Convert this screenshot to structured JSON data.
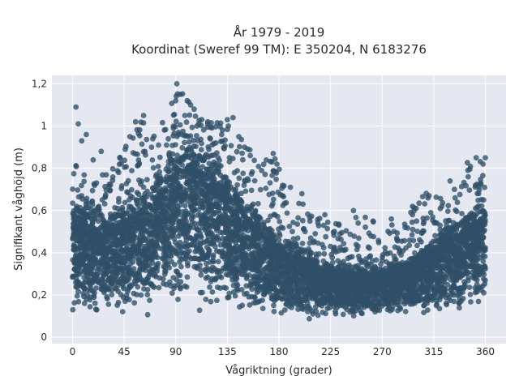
{
  "chart_data": {
    "type": "scatter",
    "title": "År 1979 - 2019",
    "subtitle": "Koordinat (Sweref 99 TM): E 350204, N 6183276",
    "xlabel": "Vågriktning (grader)",
    "ylabel": "Signifikant våghöjd (m)",
    "xlim": [
      -18,
      378
    ],
    "ylim": [
      -0.03,
      1.24
    ],
    "xticks": [
      0,
      45,
      90,
      135,
      180,
      225,
      270,
      315,
      360
    ],
    "xtick_labels": [
      "0",
      "45",
      "90",
      "135",
      "180",
      "225",
      "270",
      "315",
      "360"
    ],
    "yticks": [
      0,
      0.2,
      0.4,
      0.6,
      0.8,
      1.0,
      1.2
    ],
    "ytick_labels": [
      "0",
      "0,2",
      "0,4",
      "0,6",
      "0,8",
      "1",
      "1,2"
    ],
    "grid": true,
    "legend": "none",
    "colors": {
      "plot_bg": "#e5e8f0",
      "marker": "#2f5068",
      "grid": "#ffffff"
    },
    "series": [
      {
        "envelope": {
          "x": [
            0,
            15,
            30,
            45,
            60,
            75,
            90,
            105,
            120,
            135,
            150,
            165,
            180,
            195,
            210,
            225,
            240,
            255,
            270,
            285,
            300,
            315,
            330,
            345,
            360
          ],
          "y_min": [
            0.05,
            0.03,
            0.03,
            0.03,
            0.04,
            0.04,
            0.03,
            0.04,
            0.04,
            0.04,
            0.04,
            0.05,
            0.05,
            0.06,
            0.06,
            0.07,
            0.07,
            0.07,
            0.07,
            0.07,
            0.07,
            0.07,
            0.06,
            0.06,
            0.05
          ],
          "y_dense": [
            0.62,
            0.56,
            0.55,
            0.58,
            0.62,
            0.72,
            0.82,
            0.86,
            0.82,
            0.72,
            0.62,
            0.52,
            0.46,
            0.4,
            0.36,
            0.33,
            0.31,
            0.31,
            0.32,
            0.34,
            0.38,
            0.44,
            0.5,
            0.56,
            0.6
          ],
          "y_outlier_max": [
            0.87,
            0.74,
            0.8,
            0.9,
            1.05,
            0.97,
            1.2,
            1.1,
            1.02,
            1.03,
            0.93,
            0.84,
            0.87,
            0.68,
            0.6,
            0.57,
            0.55,
            0.6,
            0.55,
            0.54,
            0.65,
            0.71,
            0.76,
            0.85,
            0.85
          ]
        },
        "outliers": [
          [
            3,
            1.09
          ],
          [
            5,
            1.01
          ],
          [
            8,
            0.93
          ],
          [
            12,
            0.96
          ],
          [
            18,
            0.84
          ],
          [
            25,
            0.88
          ],
          [
            46,
            0.89
          ],
          [
            50,
            0.95
          ],
          [
            55,
            1.02
          ],
          [
            62,
            1.05
          ],
          [
            70,
            0.94
          ],
          [
            75,
            0.91
          ],
          [
            82,
            0.91
          ],
          [
            88,
            1.0
          ],
          [
            90,
            1.12
          ],
          [
            91,
            1.2
          ],
          [
            94,
            1.15
          ],
          [
            98,
            1.05
          ],
          [
            100,
            1.12
          ],
          [
            103,
            1.1
          ],
          [
            106,
            1.08
          ],
          [
            110,
            1.01
          ],
          [
            118,
            1.02
          ],
          [
            125,
            0.92
          ],
          [
            130,
            0.96
          ],
          [
            135,
            1.03
          ],
          [
            140,
            1.04
          ],
          [
            145,
            0.95
          ],
          [
            150,
            0.9
          ],
          [
            155,
            0.86
          ],
          [
            175,
            0.87
          ],
          [
            190,
            0.71
          ],
          [
            200,
            0.68
          ],
          [
            220,
            0.58
          ],
          [
            245,
            0.6
          ],
          [
            262,
            0.55
          ],
          [
            278,
            0.56
          ],
          [
            290,
            0.52
          ],
          [
            300,
            0.55
          ],
          [
            310,
            0.66
          ],
          [
            322,
            0.62
          ],
          [
            333,
            0.7
          ],
          [
            345,
            0.76
          ],
          [
            352,
            0.85
          ],
          [
            358,
            0.82
          ],
          [
            360,
            0.85
          ],
          [
            356,
            0.73
          ]
        ]
      }
    ]
  }
}
